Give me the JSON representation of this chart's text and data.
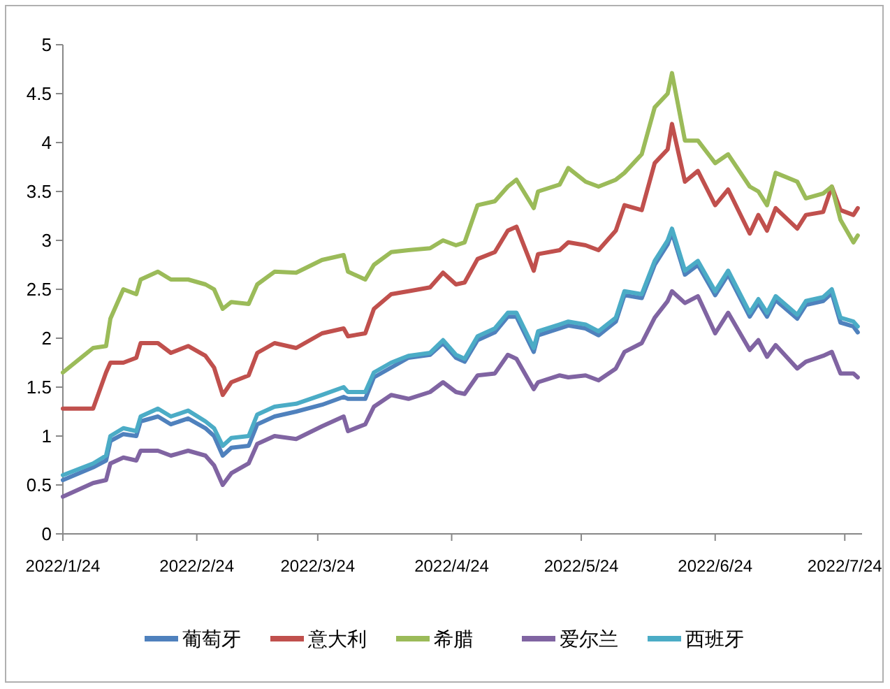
{
  "chart_data": {
    "type": "line",
    "x": [
      "2022-01-24",
      "2022-01-31",
      "2022-02-03",
      "2022-02-04",
      "2022-02-07",
      "2022-02-10",
      "2022-02-11",
      "2022-02-15",
      "2022-02-18",
      "2022-02-22",
      "2022-02-26",
      "2022-02-28",
      "2022-03-02",
      "2022-03-04",
      "2022-03-08",
      "2022-03-10",
      "2022-03-14",
      "2022-03-19",
      "2022-03-25",
      "2022-03-30",
      "2022-03-31",
      "2022-04-04",
      "2022-04-06",
      "2022-04-10",
      "2022-04-14",
      "2022-04-19",
      "2022-04-22",
      "2022-04-25",
      "2022-04-27",
      "2022-04-30",
      "2022-05-04",
      "2022-05-07",
      "2022-05-09",
      "2022-05-13",
      "2022-05-14",
      "2022-05-19",
      "2022-05-21",
      "2022-05-25",
      "2022-05-28",
      "2022-06-01",
      "2022-06-03",
      "2022-06-07",
      "2022-06-10",
      "2022-06-13",
      "2022-06-14",
      "2022-06-17",
      "2022-06-20",
      "2022-06-24",
      "2022-06-27",
      "2022-07-02",
      "2022-07-04",
      "2022-07-06",
      "2022-07-08",
      "2022-07-13",
      "2022-07-15",
      "2022-07-19",
      "2022-07-21",
      "2022-07-23",
      "2022-07-26",
      "2022-07-27"
    ],
    "series": [
      {
        "name": "葡萄牙",
        "color": "#4f81bd",
        "values": [
          0.55,
          0.68,
          0.75,
          0.95,
          1.02,
          1.0,
          1.15,
          1.2,
          1.12,
          1.18,
          1.08,
          1.0,
          0.8,
          0.88,
          0.9,
          1.12,
          1.2,
          1.25,
          1.32,
          1.4,
          1.38,
          1.38,
          1.6,
          1.7,
          1.8,
          1.83,
          1.95,
          1.8,
          1.76,
          1.98,
          2.06,
          2.22,
          2.22,
          1.86,
          2.03,
          2.1,
          2.13,
          2.1,
          2.03,
          2.17,
          2.44,
          2.41,
          2.75,
          2.96,
          3.08,
          2.65,
          2.75,
          2.44,
          2.65,
          2.22,
          2.36,
          2.22,
          2.39,
          2.2,
          2.34,
          2.38,
          2.46,
          2.16,
          2.12,
          2.06
        ]
      },
      {
        "name": "意大利",
        "color": "#c0504d",
        "values": [
          1.28,
          1.28,
          1.65,
          1.75,
          1.75,
          1.8,
          1.95,
          1.95,
          1.85,
          1.92,
          1.82,
          1.7,
          1.42,
          1.55,
          1.62,
          1.85,
          1.95,
          1.9,
          2.05,
          2.1,
          2.02,
          2.05,
          2.3,
          2.45,
          2.48,
          2.52,
          2.67,
          2.55,
          2.57,
          2.81,
          2.88,
          3.1,
          3.14,
          2.69,
          2.86,
          2.9,
          2.98,
          2.95,
          2.9,
          3.1,
          3.36,
          3.31,
          3.79,
          3.93,
          4.19,
          3.6,
          3.71,
          3.36,
          3.52,
          3.07,
          3.26,
          3.1,
          3.33,
          3.12,
          3.26,
          3.29,
          3.55,
          3.31,
          3.26,
          3.33
        ]
      },
      {
        "name": "希腊",
        "color": "#9bbb59",
        "values": [
          1.65,
          1.9,
          1.92,
          2.2,
          2.5,
          2.45,
          2.6,
          2.68,
          2.6,
          2.6,
          2.55,
          2.5,
          2.3,
          2.37,
          2.35,
          2.55,
          2.68,
          2.67,
          2.8,
          2.85,
          2.68,
          2.6,
          2.75,
          2.88,
          2.9,
          2.92,
          3.0,
          2.95,
          2.98,
          3.36,
          3.4,
          3.55,
          3.62,
          3.33,
          3.5,
          3.57,
          3.74,
          3.6,
          3.55,
          3.62,
          3.69,
          3.88,
          4.36,
          4.5,
          4.71,
          4.02,
          4.02,
          3.79,
          3.88,
          3.55,
          3.5,
          3.36,
          3.69,
          3.6,
          3.43,
          3.48,
          3.55,
          3.21,
          2.98,
          3.05
        ]
      },
      {
        "name": "爱尔兰",
        "color": "#8064a2",
        "values": [
          0.38,
          0.52,
          0.55,
          0.72,
          0.78,
          0.75,
          0.85,
          0.85,
          0.8,
          0.85,
          0.8,
          0.7,
          0.5,
          0.62,
          0.72,
          0.92,
          1.0,
          0.97,
          1.1,
          1.2,
          1.05,
          1.12,
          1.3,
          1.42,
          1.38,
          1.45,
          1.55,
          1.45,
          1.43,
          1.62,
          1.64,
          1.83,
          1.79,
          1.48,
          1.55,
          1.62,
          1.6,
          1.62,
          1.57,
          1.69,
          1.86,
          1.95,
          2.21,
          2.38,
          2.48,
          2.36,
          2.43,
          2.05,
          2.26,
          1.88,
          1.98,
          1.81,
          1.93,
          1.69,
          1.76,
          1.82,
          1.86,
          1.64,
          1.64,
          1.6
        ]
      },
      {
        "name": "西班牙",
        "color": "#4bacc6",
        "values": [
          0.6,
          0.72,
          0.8,
          1.0,
          1.08,
          1.05,
          1.2,
          1.28,
          1.2,
          1.26,
          1.15,
          1.08,
          0.9,
          0.98,
          1.0,
          1.22,
          1.3,
          1.33,
          1.42,
          1.5,
          1.45,
          1.45,
          1.65,
          1.75,
          1.82,
          1.85,
          1.98,
          1.83,
          1.79,
          2.02,
          2.1,
          2.26,
          2.26,
          1.9,
          2.07,
          2.14,
          2.17,
          2.14,
          2.07,
          2.21,
          2.48,
          2.45,
          2.79,
          3.0,
          3.12,
          2.69,
          2.79,
          2.48,
          2.69,
          2.26,
          2.4,
          2.26,
          2.43,
          2.24,
          2.38,
          2.42,
          2.5,
          2.21,
          2.17,
          2.12
        ]
      }
    ],
    "xlim": [
      "2022-01-24",
      "2022-07-28"
    ],
    "xticks": [
      {
        "value": "2022-01-24",
        "label": "2022/1/24"
      },
      {
        "value": "2022-02-24",
        "label": "2022/2/24"
      },
      {
        "value": "2022-03-24",
        "label": "2022/3/24"
      },
      {
        "value": "2022-04-24",
        "label": "2022/4/24"
      },
      {
        "value": "2022-05-24",
        "label": "2022/5/24"
      },
      {
        "value": "2022-06-24",
        "label": "2022/6/24"
      },
      {
        "value": "2022-07-24",
        "label": "2022/7/24"
      }
    ],
    "ylim": [
      0,
      5
    ],
    "yticks": [
      0,
      0.5,
      1,
      1.5,
      2,
      2.5,
      3,
      3.5,
      4,
      4.5,
      5
    ],
    "legend": "bottom",
    "marker": "none",
    "line_style": "solid"
  }
}
